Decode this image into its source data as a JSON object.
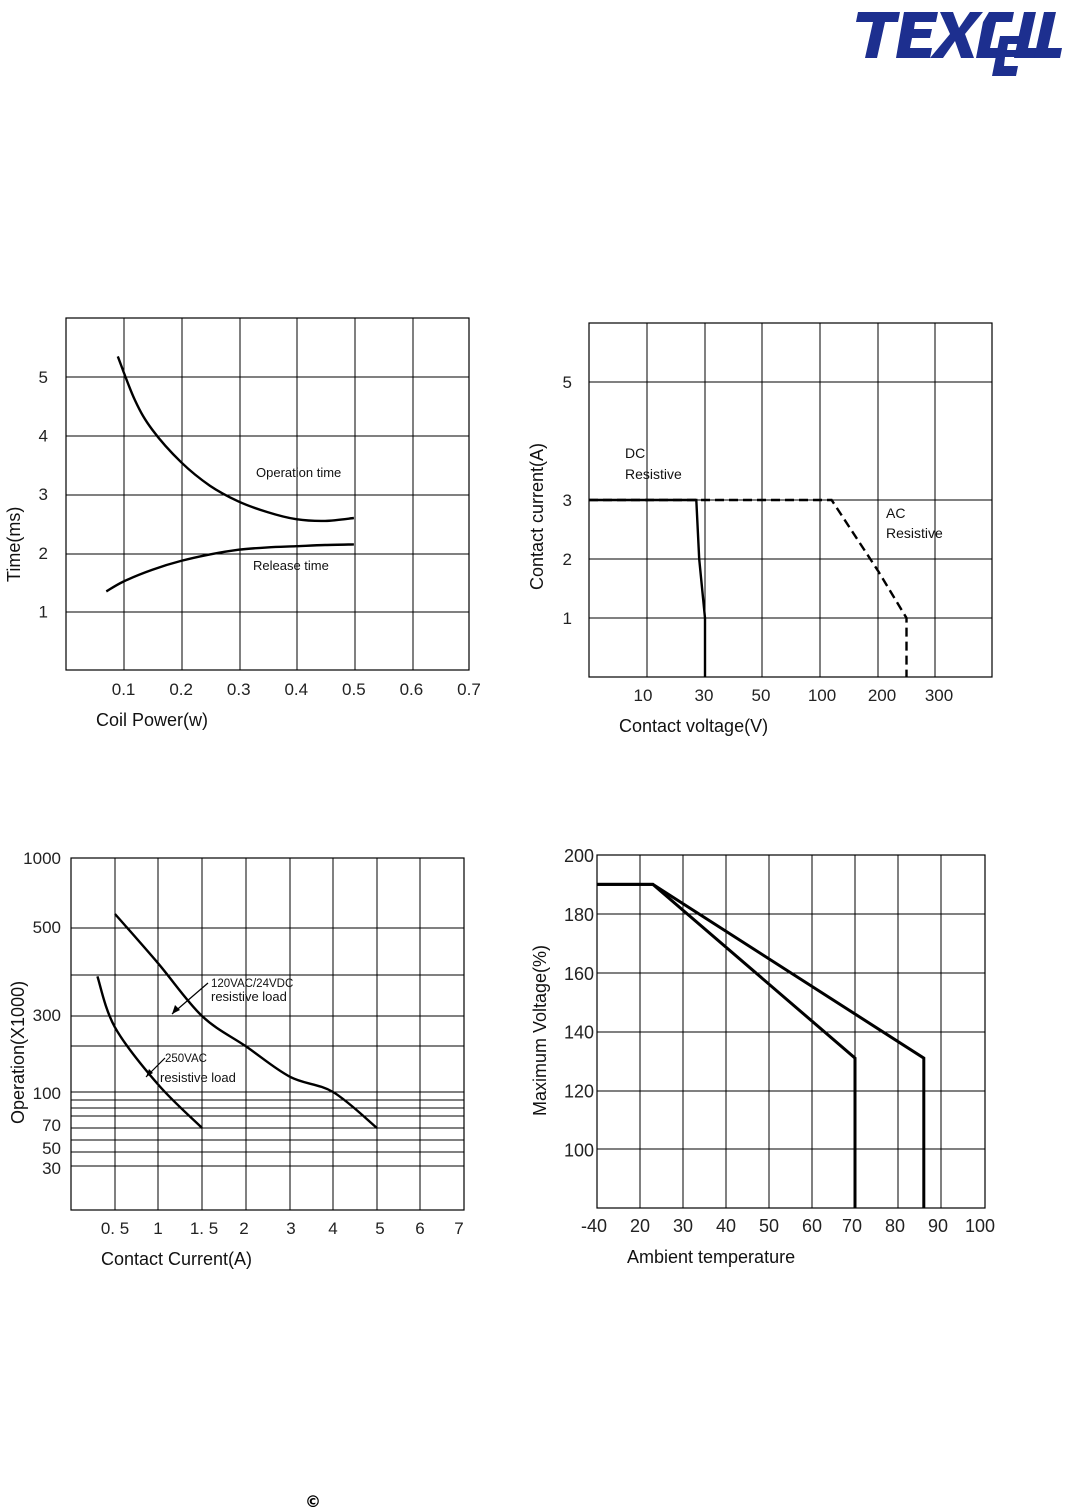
{
  "logo": {
    "text": "TEXCELL",
    "color": "#1d2f8f"
  },
  "footer": {
    "symbol": "©"
  },
  "chart_data": [
    {
      "type": "line",
      "xlabel": "Coil Power(w)",
      "ylabel": "Time(ms)",
      "x_ticks": [
        "0.1",
        "0.2",
        "0.3",
        "0.4",
        "0.5",
        "0.6",
        "0.7"
      ],
      "y_ticks": [
        "1",
        "2",
        "3",
        "4",
        "5"
      ],
      "xlim": [
        0,
        0.7
      ],
      "ylim": [
        0,
        6
      ],
      "grid": true,
      "series": [
        {
          "name": "Operation time",
          "x": [
            0.09,
            0.12,
            0.15,
            0.2,
            0.25,
            0.3,
            0.35,
            0.4,
            0.45,
            0.5
          ],
          "y": [
            5.35,
            4.6,
            4.1,
            3.55,
            3.15,
            2.88,
            2.7,
            2.58,
            2.55,
            2.6
          ]
        },
        {
          "name": "Release time",
          "x": [
            0.07,
            0.1,
            0.15,
            0.2,
            0.25,
            0.3,
            0.35,
            0.4,
            0.45,
            0.5
          ],
          "y": [
            1.35,
            1.52,
            1.72,
            1.87,
            1.98,
            2.06,
            2.1,
            2.12,
            2.14,
            2.15
          ]
        }
      ],
      "annotations": [
        "Operation time",
        "Release time"
      ]
    },
    {
      "type": "line",
      "xlabel": "Contact voltage(V)",
      "ylabel": "Contact current(A)",
      "x_ticks": [
        "10",
        "30",
        "50",
        "100",
        "200",
        "300"
      ],
      "y_ticks": [
        "1",
        "2",
        "3",
        "5"
      ],
      "grid": true,
      "series": [
        {
          "name": "DC Resistive",
          "line": "solid",
          "x": [
            0,
            27,
            28,
            30,
            30
          ],
          "y": [
            3,
            3,
            2,
            1,
            0
          ]
        },
        {
          "name": "AC Resistive",
          "line": "dashed",
          "x": [
            0,
            120,
            200,
            250,
            250
          ],
          "y": [
            3,
            3,
            1.8,
            1,
            0
          ]
        }
      ],
      "annotations": [
        "DC",
        "Resistive",
        "AC",
        "Resistive"
      ]
    },
    {
      "type": "line",
      "xlabel": "Contact Current(A)",
      "ylabel": "Operation(X1000)",
      "x_ticks": [
        "0. 5",
        "1",
        "1. 5",
        "2",
        "3",
        "4",
        "5",
        "6",
        "7"
      ],
      "y_ticks": [
        "30",
        "50",
        "70",
        "100",
        "300",
        "500",
        "1000"
      ],
      "grid": true,
      "series": [
        {
          "name": "120VAC/24VDC resistive load",
          "x": [
            0.5,
            1,
            1.5,
            2,
            3,
            4,
            5
          ],
          "y": [
            600,
            420,
            300,
            220,
            140,
            100,
            70
          ]
        },
        {
          "name": "250VAC resistive load",
          "x": [
            0.3,
            0.5,
            1,
            1.5
          ],
          "y": [
            390,
            270,
            120,
            70
          ]
        }
      ],
      "annotations": [
        "120VAC/24VDC",
        "resistive load",
        "250VAC",
        "resistive load"
      ]
    },
    {
      "type": "line",
      "xlabel": "Ambient temperature",
      "ylabel": "Maximum Voltage(%)",
      "x_ticks": [
        "-40",
        "20",
        "30",
        "40",
        "50",
        "60",
        "70",
        "80",
        "90",
        "100"
      ],
      "y_ticks": [
        "100",
        "120",
        "140",
        "160",
        "180",
        "200"
      ],
      "ylim": [
        80,
        200
      ],
      "grid": true,
      "series": [
        {
          "x": [
            -40,
            23,
            70,
            70
          ],
          "y": [
            190,
            190,
            131,
            80
          ]
        },
        {
          "x": [
            -40,
            23,
            86,
            86
          ],
          "y": [
            190,
            190,
            131,
            80
          ]
        }
      ]
    }
  ]
}
